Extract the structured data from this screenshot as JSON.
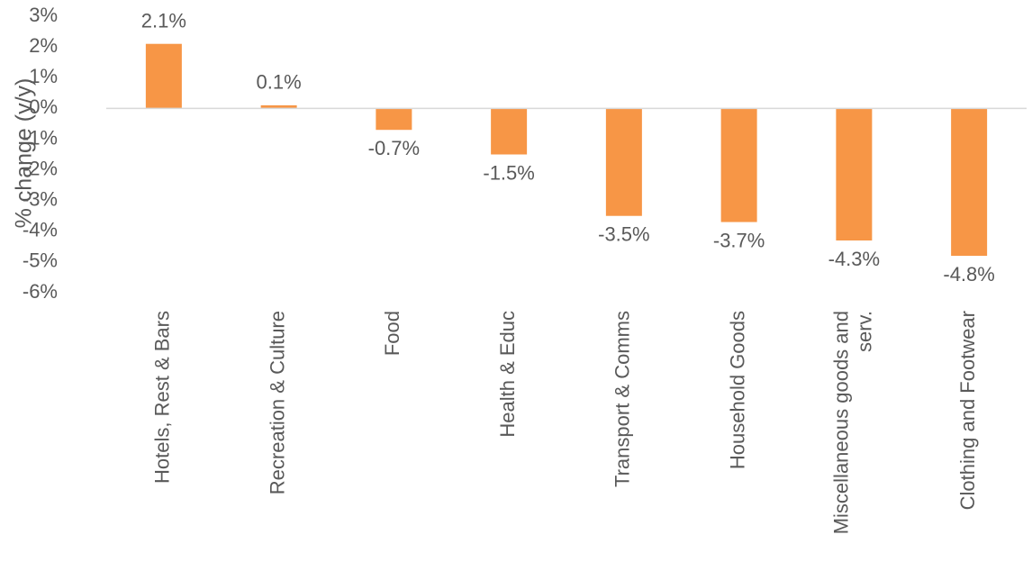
{
  "chart_data": {
    "type": "bar",
    "y_label": "% change (y/y)",
    "categories": [
      "Hotels, Rest & Bars",
      "Recreation & Culture",
      "Food",
      "Health & Educ",
      "Transport & Comms",
      "Household Goods",
      "Miscellaneous goods and serv.",
      "Clothing and Footwear"
    ],
    "values": [
      2.1,
      0.1,
      -0.7,
      -1.5,
      -3.5,
      -3.7,
      -4.3,
      -4.8
    ],
    "value_labels": [
      "2.1%",
      "0.1%",
      "-0.7%",
      "-1.5%",
      "-3.5%",
      "-3.7%",
      "-4.3%",
      "-4.8%"
    ],
    "color": "#f79646",
    "ylim": [
      -6,
      3
    ],
    "yticks": [
      {
        "value": 3,
        "label": "3%"
      },
      {
        "value": 2,
        "label": "2%"
      },
      {
        "value": 1,
        "label": "1%"
      },
      {
        "value": 0,
        "label": "0%"
      },
      {
        "value": -1,
        "label": "-1%"
      },
      {
        "value": -2,
        "label": "-2%"
      },
      {
        "value": -3,
        "label": "-3%"
      },
      {
        "value": -4,
        "label": "-4%"
      },
      {
        "value": -5,
        "label": "-5%"
      },
      {
        "value": -6,
        "label": "-6%"
      }
    ],
    "grid": false
  }
}
